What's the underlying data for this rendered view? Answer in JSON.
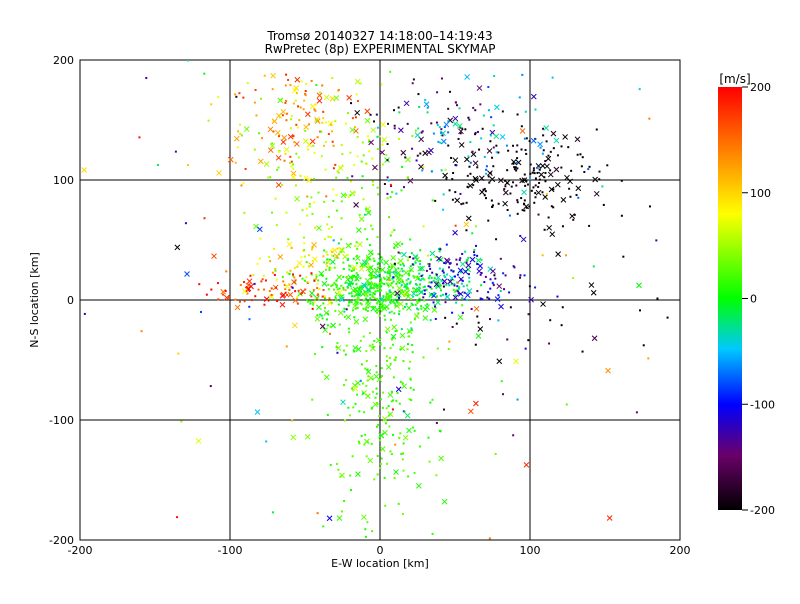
{
  "chart_data": {
    "type": "scatter",
    "title": "Tromsø 20140327 14:18:00–14:19:43",
    "subtitle": "RwPretec (8p) EXPERIMENTAL SKYMAP",
    "xlabel": "E-W location [km]",
    "ylabel": "N-S location [km]",
    "xlim": [
      -200,
      200
    ],
    "ylim": [
      -200,
      200
    ],
    "x_ticks": [
      "-200",
      "-100",
      "0",
      "100",
      "200"
    ],
    "y_ticks": [
      "-200",
      "-100",
      "0",
      "100",
      "200"
    ],
    "grid": true,
    "colorbar": {
      "label": "[m/s]",
      "range": [
        -200,
        200
      ],
      "ticks": [
        "200",
        "100",
        "0",
        "-100",
        "-200"
      ]
    },
    "clusters": [
      {
        "x": -5,
        "y": 12,
        "sx": 22,
        "sy": 14,
        "v_min": -5,
        "v_max": 30,
        "n": 360
      },
      {
        "x": 0,
        "y": -60,
        "sx": 18,
        "sy": 75,
        "v_min": 5,
        "v_max": 40,
        "n": 320
      },
      {
        "x": 25,
        "y": 15,
        "sx": 25,
        "sy": 14,
        "v_min": -40,
        "v_max": -5,
        "n": 140
      },
      {
        "x": 55,
        "y": 20,
        "sx": 20,
        "sy": 14,
        "v_min": -150,
        "v_max": -90,
        "n": 110
      },
      {
        "x": 95,
        "y": 105,
        "sx": 28,
        "sy": 20,
        "v_min": -230,
        "v_max": -180,
        "n": 200
      },
      {
        "x": 30,
        "y": 140,
        "sx": 30,
        "sy": 22,
        "v_min": -200,
        "v_max": -120,
        "n": 70
      },
      {
        "x": 55,
        "y": 135,
        "sx": 30,
        "sy": 25,
        "v_min": -90,
        "v_max": -20,
        "n": 70
      },
      {
        "x": -55,
        "y": 150,
        "sx": 22,
        "sy": 25,
        "v_min": 70,
        "v_max": 190,
        "n": 120
      },
      {
        "x": -30,
        "y": 110,
        "sx": 28,
        "sy": 45,
        "v_min": 20,
        "v_max": 80,
        "n": 160
      },
      {
        "x": -75,
        "y": 8,
        "sx": 18,
        "sy": 8,
        "v_min": 140,
        "v_max": 210,
        "n": 80
      },
      {
        "x": -50,
        "y": 25,
        "sx": 20,
        "sy": 20,
        "v_min": 60,
        "v_max": 130,
        "n": 70
      },
      {
        "x": 0,
        "y": 0,
        "sx": 120,
        "sy": 120,
        "v_min": -200,
        "v_max": 200,
        "n": 150
      },
      {
        "x": 120,
        "y": -10,
        "sx": 40,
        "sy": 25,
        "v_min": -230,
        "v_max": -150,
        "n": 35
      }
    ]
  }
}
